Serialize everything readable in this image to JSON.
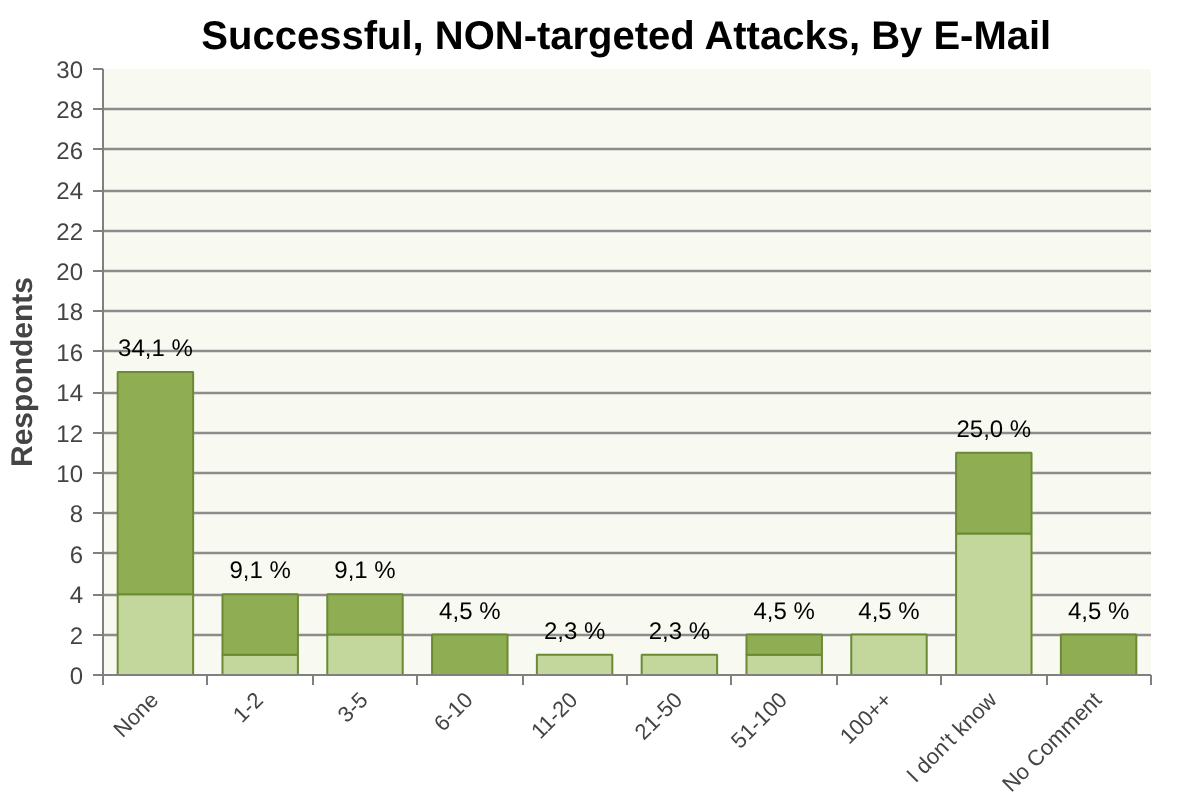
{
  "chart_data": {
    "type": "bar",
    "title": "Successful, NON-targeted Attacks, By E-Mail",
    "ylabel": "Respondents",
    "categories": [
      "None",
      "1-2",
      "3-5",
      "6-10",
      "11-20",
      "21-50",
      "51-100",
      "100++",
      "I don't know",
      "No Comment"
    ],
    "series": [
      {
        "color": "#c3d69b",
        "values": [
          4,
          1,
          2,
          0,
          1,
          1,
          1,
          2,
          7,
          0
        ]
      },
      {
        "color": "#8fad52",
        "values": [
          11,
          3,
          2,
          2,
          0,
          0,
          1,
          0,
          4,
          2
        ]
      }
    ],
    "stacked": true,
    "ylim": [
      0,
      30
    ],
    "yticks": [
      0,
      2,
      4,
      6,
      8,
      10,
      12,
      14,
      16,
      18,
      20,
      22,
      24,
      26,
      28,
      30
    ],
    "grid": "y",
    "annotations": [
      {
        "text": "34,1 %",
        "x": "None",
        "y": 15
      },
      {
        "text": "9,1 %",
        "x": "1-2",
        "y": 4
      },
      {
        "text": "9,1 %",
        "x": "3-5",
        "y": 4
      },
      {
        "text": "4,5 %",
        "x": "6-10",
        "y": 2
      },
      {
        "text": "2,3 %",
        "x": "11-20",
        "y": 1
      },
      {
        "text": "2,3 %",
        "x": "21-50",
        "y": 1
      },
      {
        "text": "4,5 %",
        "x": "51-100",
        "y": 2
      },
      {
        "text": "4,5 %",
        "x": "100++",
        "y": 2
      },
      {
        "text": "25,0 %",
        "x": "I don't know",
        "y": 11
      },
      {
        "text": "4,5 %",
        "x": "No Comment",
        "y": 2
      }
    ]
  }
}
